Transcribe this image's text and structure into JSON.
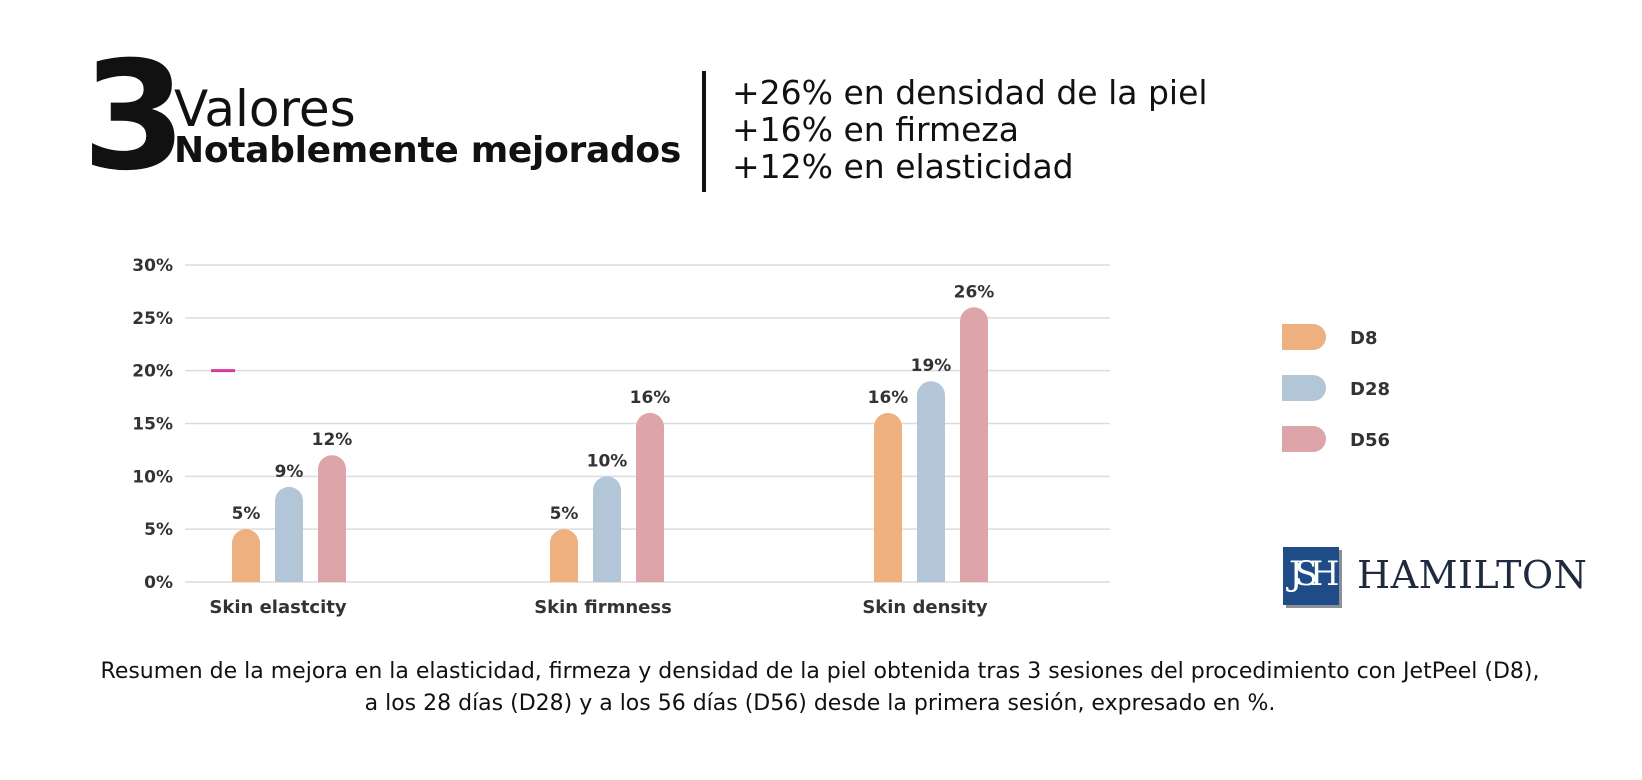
{
  "header": {
    "number": "3",
    "line1": "Valores",
    "line2": "Notablemente mejorados",
    "stats": [
      "+26% en densidad de la piel",
      "+16% en firmeza",
      "+12% en elasticidad"
    ]
  },
  "chart_data": {
    "type": "bar",
    "categories": [
      "Skin elastcity",
      "Skin firmness",
      "Skin density"
    ],
    "series": [
      {
        "name": "D8",
        "values": [
          5,
          5,
          16
        ],
        "color": "#eeb07f"
      },
      {
        "name": "D28",
        "values": [
          9,
          10,
          19
        ],
        "color": "#b3c6d8"
      },
      {
        "name": "D56",
        "values": [
          12,
          16,
          26
        ],
        "color": "#dda5a9"
      }
    ],
    "data_labels": [
      [
        "5%",
        "5%",
        "16%"
      ],
      [
        "9%",
        "10%",
        "19%"
      ],
      [
        "12%",
        "16%",
        "26%"
      ]
    ],
    "yticks": [
      "0%",
      "5%",
      "10%",
      "15%",
      "20%",
      "25%",
      "30%"
    ],
    "ylim": [
      0,
      30
    ],
    "grid": true,
    "legend_position": "right",
    "marker_color": "#d6399a"
  },
  "logo": {
    "monogram": "JSH",
    "wordmark": "HAMILTON"
  },
  "caption": "Resumen de la mejora en la elasticidad, firmeza y densidad de la piel obtenida tras 3 sesiones del procedimiento con JetPeel (D8), a los 28 días (D28) y a los 56 días (D56) desde la primera sesión, expresado en %."
}
